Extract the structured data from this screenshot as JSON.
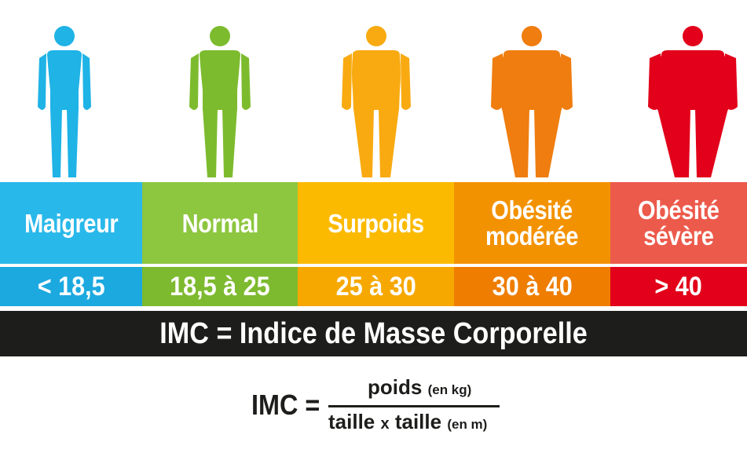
{
  "categories": [
    {
      "label_lines": [
        "Maigreur"
      ],
      "range": "< 18,5",
      "band_color": "#29b8ea",
      "range_color": "#1ca9e0",
      "figure_color": "#1fb3e6",
      "build": 0
    },
    {
      "label_lines": [
        "Normal"
      ],
      "range": "18,5 à 25",
      "band_color": "#8dc63f",
      "range_color": "#7dba2f",
      "figure_color": "#7dbb2e",
      "build": 1
    },
    {
      "label_lines": [
        "Surpoids"
      ],
      "range": "25 à 30",
      "band_color": "#fbba00",
      "range_color": "#f6a800",
      "figure_color": "#f8aa10",
      "build": 2
    },
    {
      "label_lines": [
        "Obésité",
        "modérée"
      ],
      "range": "30 à 40",
      "band_color": "#f39200",
      "range_color": "#ee7d00",
      "figure_color": "#ef7d0f",
      "build": 3
    },
    {
      "label_lines": [
        "Obésité",
        "sévère"
      ],
      "range": "> 40",
      "band_color": "#ec5a4b",
      "range_color": "#e2001a",
      "figure_color": "#e2001a",
      "build": 4
    }
  ],
  "title_bar": "IMC = Indice de Masse Corporelle",
  "formula": {
    "lhs": "IMC =",
    "numerator": "poids",
    "numerator_unit": "(en kg)",
    "denominator_a": "taille",
    "denominator_x": "x",
    "denominator_b": "taille",
    "denominator_unit": "(en m)"
  }
}
